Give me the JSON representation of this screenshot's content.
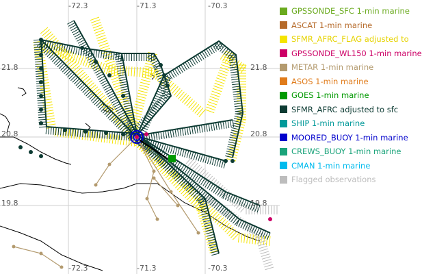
{
  "map": {
    "lon_labels_top": [
      "-72.3",
      "-71.3",
      "-70.3"
    ],
    "lon_labels_bottom": [
      "-72.3",
      "-71.3",
      "-70.3"
    ],
    "lat_labels_left": [
      "21.8",
      "20.8",
      "19.8"
    ],
    "lat_labels_right": [
      "21.8",
      "20.8",
      "19.8"
    ],
    "colors": {
      "sfmr": "#0d3b33",
      "sfmr_flag": "#f5e400",
      "flagged": "#bdbdbd",
      "metar": "#b39a6e",
      "buoy": "#0000cc",
      "gpssonde_wl150": "#cc0066",
      "goes": "#009900",
      "grid": "#cfcfcf",
      "coast": "#000000"
    }
  },
  "legend": [
    {
      "label": "GPSSONDE_SFC 1-min marine",
      "color": "#6aaa1e"
    },
    {
      "label": "ASCAT 1-min marine",
      "color": "#b56a2a"
    },
    {
      "label": "SFMR_AFRC_FLAG adjusted to",
      "color": "#f5e400"
    },
    {
      "label": "GPSSONDE_WL150 1-min marine",
      "color": "#cc0066"
    },
    {
      "label": "METAR 1-min marine",
      "color": "#b39a6e"
    },
    {
      "label": "ASOS 1-min marine",
      "color": "#e07b1a"
    },
    {
      "label": "GOES 1-min marine",
      "color": "#009900"
    },
    {
      "label": "SFMR_AFRC adjusted to sfc",
      "color": "#0d3b33"
    },
    {
      "label": "SHIP 1-min marine",
      "color": "#009999"
    },
    {
      "label": "MOORED_BUOY 1-min marine",
      "color": "#0000cc"
    },
    {
      "label": "CREWS_BUOY 1-min marine",
      "color": "#1aa37a"
    },
    {
      "label": "CMAN 1-min marine",
      "color": "#00bbee"
    },
    {
      "label": "Flagged observations",
      "color": "#bdbdbd"
    }
  ]
}
